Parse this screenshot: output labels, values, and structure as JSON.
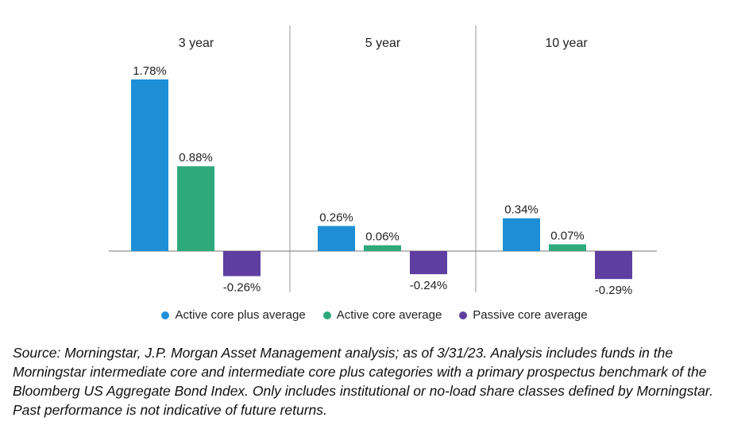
{
  "chart_data": {
    "type": "bar",
    "panels": [
      "3 year",
      "5 year",
      "10 year"
    ],
    "series": [
      {
        "name": "Active core plus average",
        "color": "#1e8fd6",
        "values": [
          1.78,
          0.26,
          0.34
        ],
        "labels": [
          "1.78%",
          "0.26%",
          "0.34%"
        ]
      },
      {
        "name": "Active core average",
        "color": "#2ea97c",
        "values": [
          0.88,
          0.06,
          0.07
        ],
        "labels": [
          "0.88%",
          "0.06%",
          "0.07%"
        ]
      },
      {
        "name": "Passive core average",
        "color": "#5e3ea1",
        "values": [
          -0.26,
          -0.24,
          -0.29
        ],
        "labels": [
          "-0.26%",
          "-0.24%",
          "-0.29%"
        ]
      }
    ],
    "legend_position": "bottom",
    "grid": false
  },
  "source_note": "Source: Morningstar, J.P. Morgan Asset Management analysis; as of 3/31/23. Analysis includes funds in the Morningstar intermediate core and intermediate core plus categories with a primary prospectus benchmark of the Bloomberg US Aggregate Bond Index. Only includes institutional or no-load share classes defined by Morningstar. Past performance is not indicative of future returns."
}
